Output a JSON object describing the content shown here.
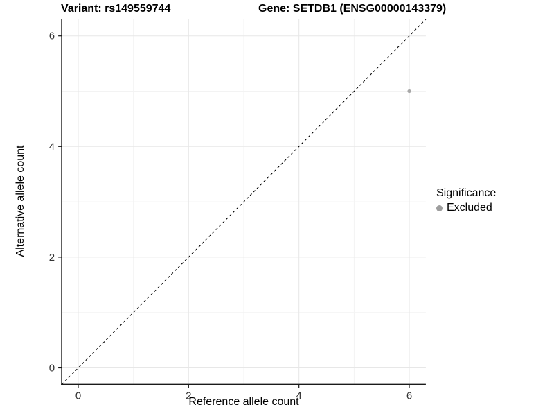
{
  "title": {
    "left": "Variant: rs149559744",
    "right": "Gene: SETDB1 (ENSG00000143379)"
  },
  "chart_data": {
    "type": "scatter",
    "xlabel": "Reference allele count",
    "ylabel": "Alternative allele count",
    "xlim": [
      -0.3,
      6.3
    ],
    "ylim": [
      -0.3,
      6.3
    ],
    "x_ticks": [
      0,
      2,
      4,
      6
    ],
    "y_ticks": [
      0,
      2,
      4,
      6
    ],
    "x_minor_ticks": [
      1,
      3,
      5
    ],
    "y_minor_ticks": [
      1,
      3,
      5
    ],
    "grid": true,
    "series": [
      {
        "name": "Excluded",
        "color": "#a8a8a8",
        "points": [
          {
            "x": 6,
            "y": 5
          }
        ]
      }
    ],
    "reference_line": {
      "style": "dashed",
      "slope": 1,
      "intercept": 0,
      "color": "#000000"
    },
    "legend": {
      "title": "Significance",
      "position": "right",
      "items": [
        {
          "label": "Excluded",
          "color": "#9e9e9e"
        }
      ]
    }
  },
  "colors": {
    "grid_major": "#e7e7e7",
    "grid_minor": "#f3f3f3",
    "axis_line": "#1a1a1a",
    "tick_text": "#333333"
  }
}
